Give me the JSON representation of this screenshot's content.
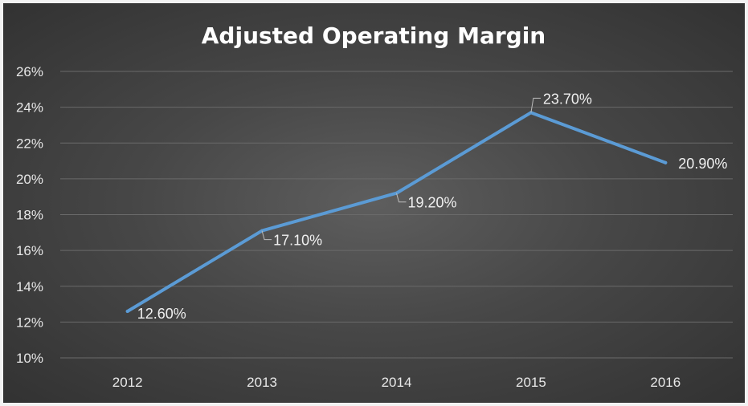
{
  "chart_data": {
    "type": "line",
    "title": "Adjusted Operating Margin",
    "xlabel": "",
    "ylabel": "",
    "categories": [
      "2012",
      "2013",
      "2014",
      "2015",
      "2016"
    ],
    "series": [
      {
        "values": [
          12.6,
          17.1,
          19.2,
          23.7,
          20.9
        ],
        "data_labels": [
          "12.60%",
          "17.10%",
          "19.20%",
          "23.70%",
          "20.90%"
        ]
      }
    ],
    "ylim": [
      10,
      26
    ],
    "y_ticks": [
      "10%",
      "12%",
      "14%",
      "16%",
      "18%",
      "20%",
      "22%",
      "24%",
      "26%"
    ],
    "grid": true,
    "legend": "none",
    "colors": {
      "line": "#5b9bd5",
      "background": "#404040",
      "grid": "#6a6a6a",
      "text": "#ffffff"
    }
  }
}
